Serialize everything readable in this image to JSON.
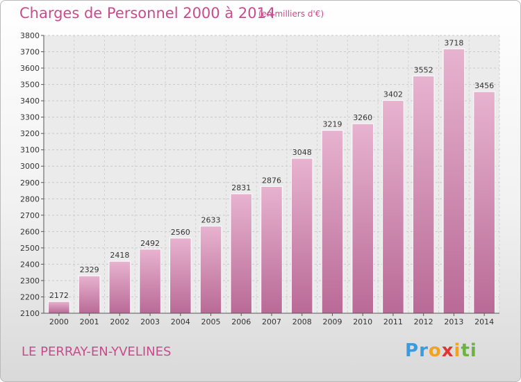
{
  "title": "Charges de Personnel 2000 à 2014",
  "subtitle": "(en milliers d'€)",
  "place": "LE PERRAY-EN-YVELINES",
  "logo": {
    "letters": [
      "P",
      "r",
      "o",
      "x",
      "i",
      "t",
      "i"
    ],
    "colors": [
      "#3a9be0",
      "#3a9be0",
      "#f2a31b",
      "#e3342f",
      "#f2a31b",
      "#6db33f",
      "#6db33f"
    ]
  },
  "chart_data": {
    "type": "bar",
    "title": "Charges de Personnel 2000 à 2014",
    "subtitle": "(en milliers d'€)",
    "categories": [
      "2000",
      "2001",
      "2002",
      "2003",
      "2004",
      "2005",
      "2006",
      "2007",
      "2008",
      "2009",
      "2010",
      "2011",
      "2012",
      "2013",
      "2014"
    ],
    "values": [
      2172,
      2329,
      2418,
      2492,
      2560,
      2633,
      2831,
      2876,
      3048,
      3219,
      3260,
      3402,
      3552,
      3718,
      3456
    ],
    "ylim": [
      2100,
      3800
    ],
    "yticks": [
      2100,
      2200,
      2300,
      2400,
      2500,
      2600,
      2700,
      2800,
      2900,
      3000,
      3100,
      3200,
      3300,
      3400,
      3500,
      3600,
      3700,
      3800
    ],
    "grid": true,
    "bar_color": "#c9639c",
    "data_labels": true
  }
}
